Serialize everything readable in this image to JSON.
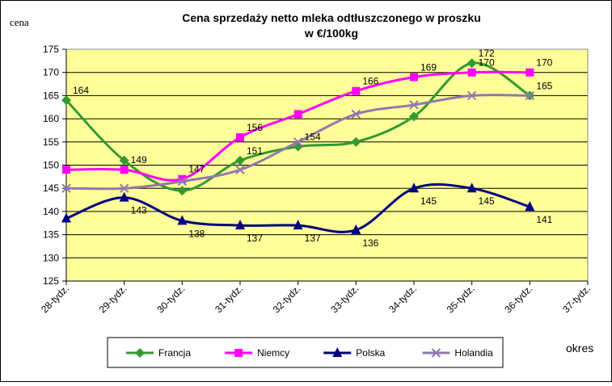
{
  "chart_data": {
    "type": "line",
    "title": "Cena sprzedaży netto mleka odtłuszczonego w proszku",
    "subtitle": "w €/100kg",
    "y_label": "cena",
    "x_label": "okres",
    "categories": [
      "28-tydz.",
      "29-tydz.",
      "30-tydz.",
      "31-tydz.",
      "32-tydz.",
      "33-tydz.",
      "34-tydz.",
      "35-tydz.",
      "36-tydz.",
      "37-tydz."
    ],
    "series": [
      {
        "name": "Francja",
        "color": "#339933",
        "marker": "diamond",
        "values": [
          164,
          151,
          144.5,
          151,
          154,
          155,
          160.5,
          172,
          165,
          null
        ],
        "value_labels": [
          "164",
          null,
          null,
          "151",
          "154",
          null,
          null,
          "172",
          "165",
          null
        ]
      },
      {
        "name": "Niemcy",
        "color": "#ff00ff",
        "marker": "square",
        "values": [
          149,
          149,
          147,
          156,
          161,
          166,
          169,
          170,
          170,
          null
        ],
        "value_labels": [
          null,
          "149",
          "147",
          "156",
          null,
          "166",
          "169",
          "170",
          "170",
          null
        ]
      },
      {
        "name": "Polska",
        "color": "#000080",
        "marker": "triangle",
        "values": [
          138.5,
          143,
          138,
          137,
          137,
          136,
          145,
          145,
          141,
          null
        ],
        "value_labels": [
          null,
          "143",
          "138",
          "137",
          "137",
          "136",
          "145",
          "145",
          "141",
          null
        ]
      },
      {
        "name": "Holandia",
        "color": "#9278ad",
        "marker": "x",
        "values": [
          145,
          145,
          146.5,
          149,
          155,
          161,
          163,
          165,
          165,
          null
        ]
      }
    ],
    "ylim": [
      125,
      175
    ],
    "yticks": [
      125,
      130,
      135,
      140,
      145,
      150,
      155,
      160,
      165,
      170,
      175
    ],
    "grid": true,
    "plot_background": "#ffff99",
    "legend": "bottom"
  }
}
